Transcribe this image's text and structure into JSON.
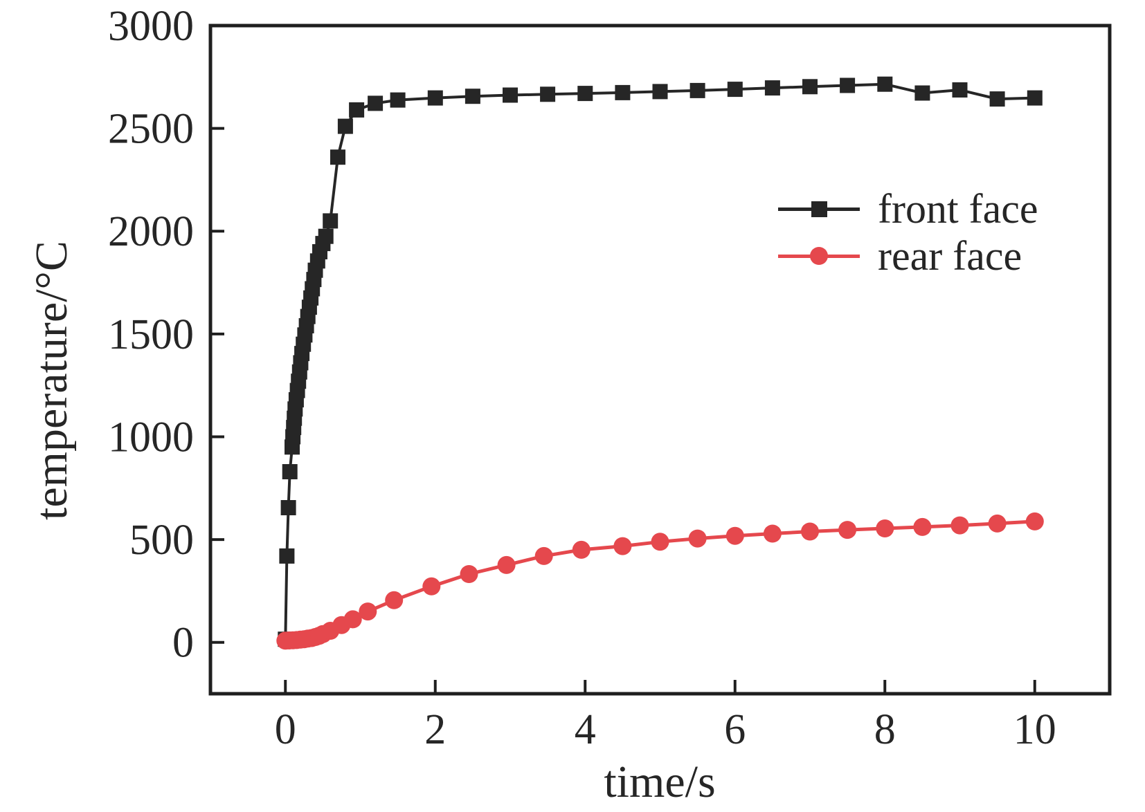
{
  "figure": {
    "background_color": "#ffffff",
    "axis_color": "#1f1f1f",
    "text_color": "#262626"
  },
  "chart_data": {
    "type": "line",
    "title": "",
    "xlabel": "time/s",
    "ylabel": "temperature/°C",
    "xlim": [
      -1,
      11
    ],
    "ylim": [
      -250,
      3000
    ],
    "x_ticks": [
      0,
      2,
      4,
      6,
      8,
      10
    ],
    "y_ticks": [
      0,
      500,
      1000,
      1500,
      2000,
      2500,
      3000
    ],
    "grid": false,
    "legend_position": "upper-right-inside",
    "series": [
      {
        "name": "front face",
        "color": "#262626",
        "marker": "square",
        "points": [
          [
            0,
            15
          ],
          [
            0.02,
            420
          ],
          [
            0.04,
            655
          ],
          [
            0.06,
            830
          ],
          [
            0.09,
            950
          ],
          [
            0.1,
            1000
          ],
          [
            0.11,
            1045
          ],
          [
            0.12,
            1090
          ],
          [
            0.13,
            1135
          ],
          [
            0.145,
            1180
          ],
          [
            0.16,
            1225
          ],
          [
            0.175,
            1270
          ],
          [
            0.19,
            1315
          ],
          [
            0.205,
            1360
          ],
          [
            0.22,
            1405
          ],
          [
            0.24,
            1450
          ],
          [
            0.26,
            1495
          ],
          [
            0.28,
            1540
          ],
          [
            0.3,
            1585
          ],
          [
            0.32,
            1630
          ],
          [
            0.34,
            1675
          ],
          [
            0.36,
            1720
          ],
          [
            0.38,
            1765
          ],
          [
            0.4,
            1810
          ],
          [
            0.43,
            1855
          ],
          [
            0.46,
            1900
          ],
          [
            0.5,
            1940
          ],
          [
            0.54,
            1975
          ],
          [
            0.6,
            2050
          ],
          [
            0.7,
            2360
          ],
          [
            0.8,
            2510
          ],
          [
            0.95,
            2590
          ],
          [
            1.2,
            2622
          ],
          [
            1.5,
            2638
          ],
          [
            2.0,
            2648
          ],
          [
            2.5,
            2656
          ],
          [
            3.0,
            2662
          ],
          [
            3.5,
            2666
          ],
          [
            4.0,
            2670
          ],
          [
            4.5,
            2674
          ],
          [
            5.0,
            2679
          ],
          [
            5.5,
            2684
          ],
          [
            6.0,
            2690
          ],
          [
            6.5,
            2697
          ],
          [
            7.0,
            2703
          ],
          [
            7.5,
            2709
          ],
          [
            8.0,
            2715
          ],
          [
            8.5,
            2672
          ],
          [
            9.0,
            2687
          ],
          [
            9.5,
            2643
          ],
          [
            10.0,
            2648
          ]
        ]
      },
      {
        "name": "rear face",
        "color": "#E5484D",
        "marker": "circle",
        "points": [
          [
            0,
            8
          ],
          [
            0.05,
            9
          ],
          [
            0.1,
            10
          ],
          [
            0.15,
            11
          ],
          [
            0.2,
            13
          ],
          [
            0.25,
            15
          ],
          [
            0.3,
            18
          ],
          [
            0.35,
            21
          ],
          [
            0.4,
            26
          ],
          [
            0.45,
            32
          ],
          [
            0.5,
            40
          ],
          [
            0.6,
            56
          ],
          [
            0.75,
            84
          ],
          [
            0.9,
            112
          ],
          [
            1.1,
            150
          ],
          [
            1.45,
            205
          ],
          [
            1.95,
            272
          ],
          [
            2.45,
            332
          ],
          [
            2.95,
            376
          ],
          [
            3.45,
            420
          ],
          [
            3.95,
            450
          ],
          [
            4.5,
            468
          ],
          [
            5.0,
            489
          ],
          [
            5.5,
            505
          ],
          [
            6.0,
            518
          ],
          [
            6.5,
            529
          ],
          [
            7.0,
            539
          ],
          [
            7.5,
            547
          ],
          [
            8.0,
            554
          ],
          [
            8.5,
            561
          ],
          [
            9.0,
            569
          ],
          [
            9.5,
            578
          ],
          [
            10.0,
            588
          ]
        ]
      }
    ]
  }
}
